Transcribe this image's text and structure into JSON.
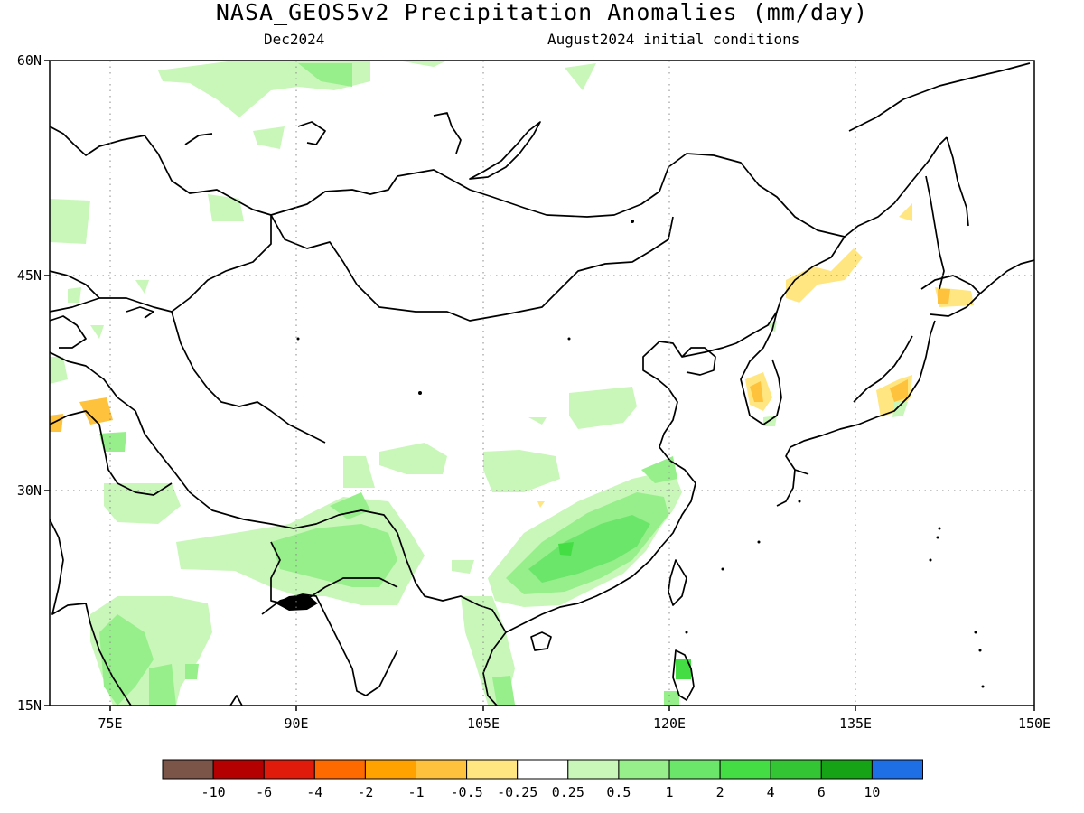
{
  "title": "NASA_GEOS5v2 Precipitation Anomalies (mm/day)",
  "forecast_month": "Dec2024",
  "initial_conditions": "August2024 initial conditions",
  "lat_labels": [
    "60N",
    "45N",
    "30N",
    "15N"
  ],
  "lon_labels": [
    "75E",
    "90E",
    "105E",
    "120E",
    "135E",
    "150E"
  ],
  "colorbar": {
    "colors": [
      "#7b5548",
      "#b40000",
      "#e01b0b",
      "#ff6a00",
      "#ffa200",
      "#ffc23c",
      "#ffe680",
      "#ffffff",
      "#c8f7b9",
      "#96ef8a",
      "#6ce56b",
      "#44dd44",
      "#33c533",
      "#16a316",
      "#1e6ee6"
    ],
    "labels": [
      "-10",
      "-6",
      "-4",
      "-2",
      "-1",
      "-0.5",
      "-0.25",
      "0.25",
      "0.5",
      "1",
      "2",
      "4",
      "6",
      "10"
    ]
  },
  "colors": {
    "light_green": "#c8f7b9",
    "green": "#96ef8a",
    "mid_green": "#6ce56b",
    "bright_green": "#44dd44",
    "pale_yellow": "#ffe680",
    "orange": "#ffc23c"
  }
}
